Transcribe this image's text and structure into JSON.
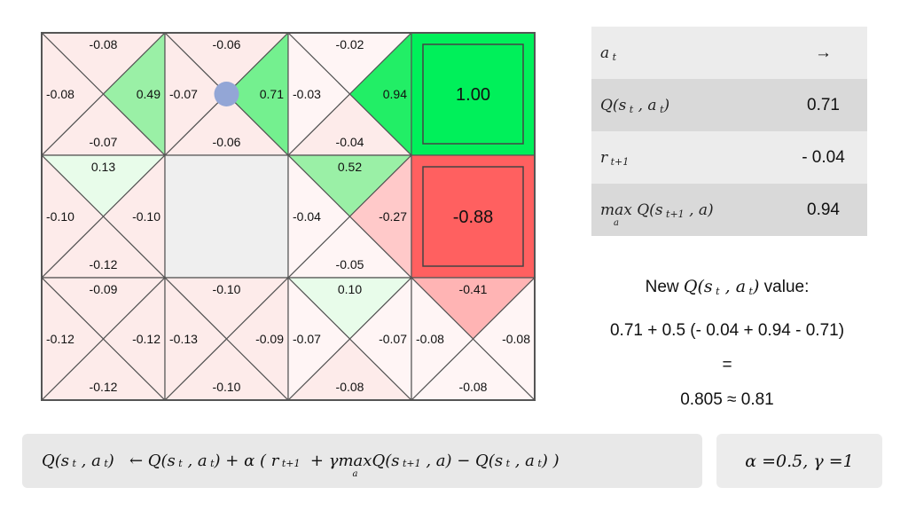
{
  "grid": {
    "rows": 3,
    "cols": 4,
    "agent_position": {
      "row": 0,
      "col": 1
    },
    "cells": [
      [
        {
          "type": "q",
          "up": "-0.08",
          "left": "-0.08",
          "right": "0.49",
          "down": "-0.07",
          "fills": {
            "up": "#fdebea",
            "left": "#fdebea",
            "right": "#9af0a6",
            "down": "#fdebea"
          }
        },
        {
          "type": "q",
          "up": "-0.06",
          "left": "-0.07",
          "right": "0.71",
          "down": "-0.06",
          "fills": {
            "up": "#fdebea",
            "left": "#fdebea",
            "right": "#74f08f",
            "down": "#fdebea"
          }
        },
        {
          "type": "q",
          "up": "-0.02",
          "left": "-0.03",
          "right": "0.94",
          "down": "-0.04",
          "fills": {
            "up": "#fff5f5",
            "left": "#fff5f5",
            "right": "#22ee66",
            "down": "#fdebea"
          }
        },
        {
          "type": "terminal",
          "value": "1.00",
          "fill": "#00f05a"
        }
      ],
      [
        {
          "type": "q",
          "up": "0.13",
          "left": "-0.10",
          "right": "-0.10",
          "down": "-0.12",
          "fills": {
            "up": "#e8fcea",
            "left": "#fdebea",
            "right": "#fdebea",
            "down": "#fdebea"
          }
        },
        {
          "type": "wall",
          "fill": "#efefef"
        },
        {
          "type": "q",
          "up": "0.52",
          "left": "-0.04",
          "right": "-0.27",
          "down": "-0.05",
          "fills": {
            "up": "#9af0a6",
            "left": "#fff5f5",
            "right": "#ffc9c9",
            "down": "#fff5f5"
          }
        },
        {
          "type": "terminal",
          "value": "-0.88",
          "fill": "#ff6060"
        }
      ],
      [
        {
          "type": "q",
          "up": "-0.09",
          "left": "-0.12",
          "right": "-0.12",
          "down": "-0.12",
          "fills": {
            "up": "#fdebea",
            "left": "#fdebea",
            "right": "#fdebea",
            "down": "#fdebea"
          }
        },
        {
          "type": "q",
          "up": "-0.10",
          "left": "-0.13",
          "right": "-0.09",
          "down": "-0.10",
          "fills": {
            "up": "#fdebea",
            "left": "#fdebea",
            "right": "#fdebea",
            "down": "#fdebea"
          }
        },
        {
          "type": "q",
          "up": "0.10",
          "left": "-0.07",
          "right": "-0.07",
          "down": "-0.08",
          "fills": {
            "up": "#e8fcea",
            "left": "#fff5f5",
            "right": "#fff5f5",
            "down": "#fdebea"
          }
        },
        {
          "type": "q",
          "up": "-0.41",
          "left": "-0.08",
          "right": "-0.08",
          "down": "-0.08",
          "fills": {
            "up": "#ffb4b4",
            "left": "#fff5f5",
            "right": "#fff5f5",
            "down": "#fff5f5"
          }
        }
      ]
    ]
  },
  "info_table": {
    "action_value": "→",
    "q_value": "0.71",
    "reward_value": "- 0.04",
    "maxq_value": "0.94"
  },
  "update": {
    "prefix": "New",
    "suffix": "value:",
    "computation": "0.71 + 0.5 (- 0.04 + 0.94 - 0.71)",
    "equals": "=",
    "result": "0.805 ≈ 0.81"
  },
  "formula": {
    "alpha": "0.5",
    "gamma": "1"
  }
}
